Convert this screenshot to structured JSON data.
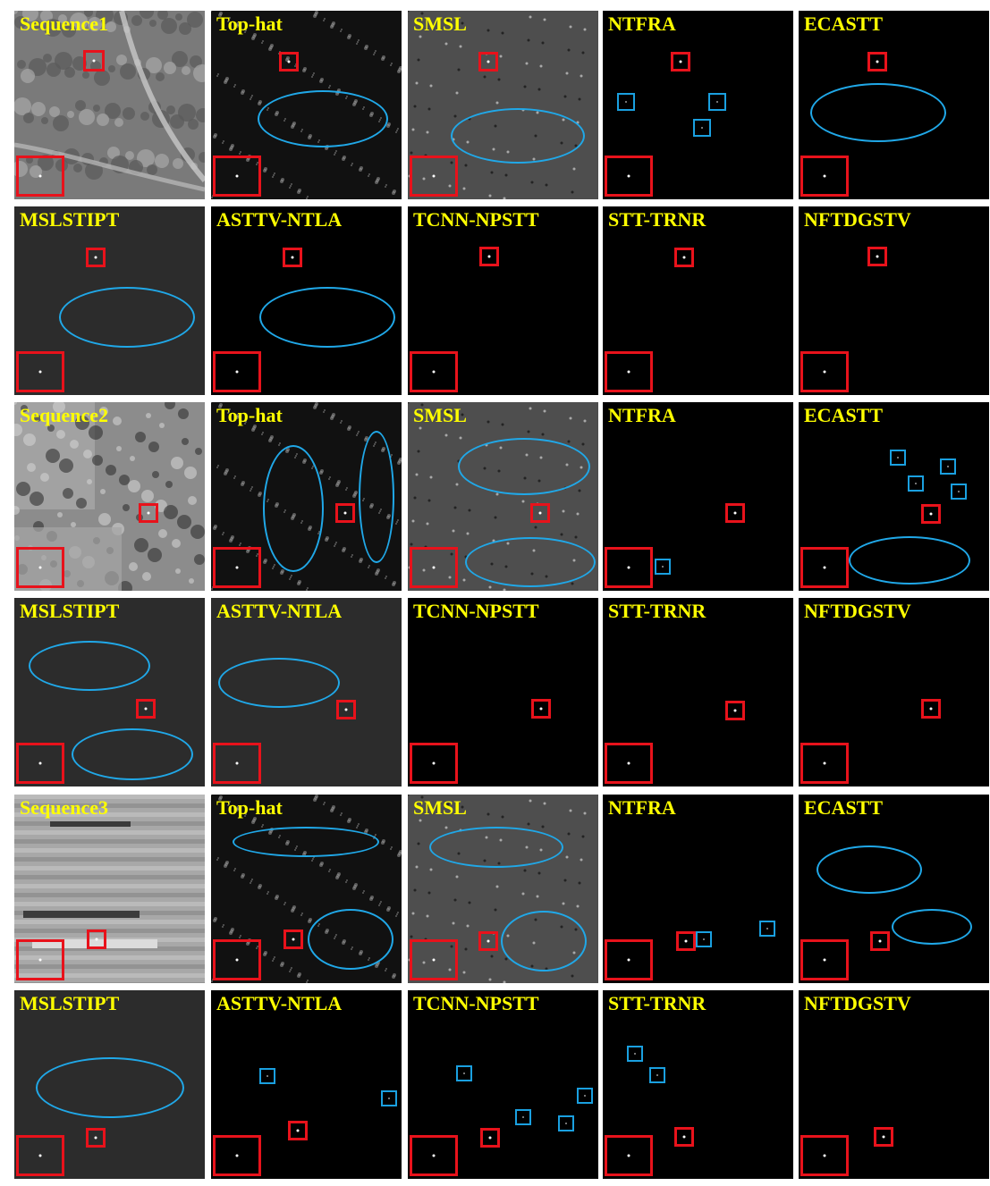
{
  "figure": {
    "rows": [
      {
        "panels": [
          {
            "label": "Sequence1",
            "tone": "scene1"
          },
          {
            "label": "Top-hat",
            "tone": "noisy"
          },
          {
            "label": "SMSL",
            "tone": "gray"
          },
          {
            "label": "NTFRA",
            "tone": "black"
          },
          {
            "label": "ECASTT",
            "tone": "black"
          }
        ]
      },
      {
        "panels": [
          {
            "label": "MSLSTIPT",
            "tone": "darkgray"
          },
          {
            "label": "ASTTV-NTLA",
            "tone": "black"
          },
          {
            "label": "TCNN-NPSTT",
            "tone": "black"
          },
          {
            "label": "STT-TRNR",
            "tone": "black"
          },
          {
            "label": "NFTDGSTV",
            "tone": "black"
          }
        ]
      },
      {
        "panels": [
          {
            "label": "Sequence2",
            "tone": "scene2"
          },
          {
            "label": "Top-hat",
            "tone": "noisy"
          },
          {
            "label": "SMSL",
            "tone": "gray"
          },
          {
            "label": "NTFRA",
            "tone": "black"
          },
          {
            "label": "ECASTT",
            "tone": "black"
          }
        ]
      },
      {
        "panels": [
          {
            "label": "MSLSTIPT",
            "tone": "darkgray"
          },
          {
            "label": "ASTTV-NTLA",
            "tone": "darkgray"
          },
          {
            "label": "TCNN-NPSTT",
            "tone": "black"
          },
          {
            "label": "STT-TRNR",
            "tone": "black"
          },
          {
            "label": "NFTDGSTV",
            "tone": "black"
          }
        ]
      },
      {
        "panels": [
          {
            "label": "Sequence3",
            "tone": "scene3"
          },
          {
            "label": "Top-hat",
            "tone": "noisy"
          },
          {
            "label": "SMSL",
            "tone": "gray"
          },
          {
            "label": "NTFRA",
            "tone": "black"
          },
          {
            "label": "ECASTT",
            "tone": "black"
          }
        ]
      },
      {
        "panels": [
          {
            "label": "MSLSTIPT",
            "tone": "darkgray"
          },
          {
            "label": "ASTTV-NTLA",
            "tone": "black"
          },
          {
            "label": "TCNN-NPSTT",
            "tone": "black"
          },
          {
            "label": "STT-TRNR",
            "tone": "black"
          },
          {
            "label": "NFTDGSTV",
            "tone": "black"
          }
        ]
      }
    ],
    "colors": {
      "label": "#ffff00",
      "target_box": "#e8121b",
      "false_alarm_box": "#1aa0e0",
      "clutter_ellipse": "#20a8e8"
    }
  }
}
